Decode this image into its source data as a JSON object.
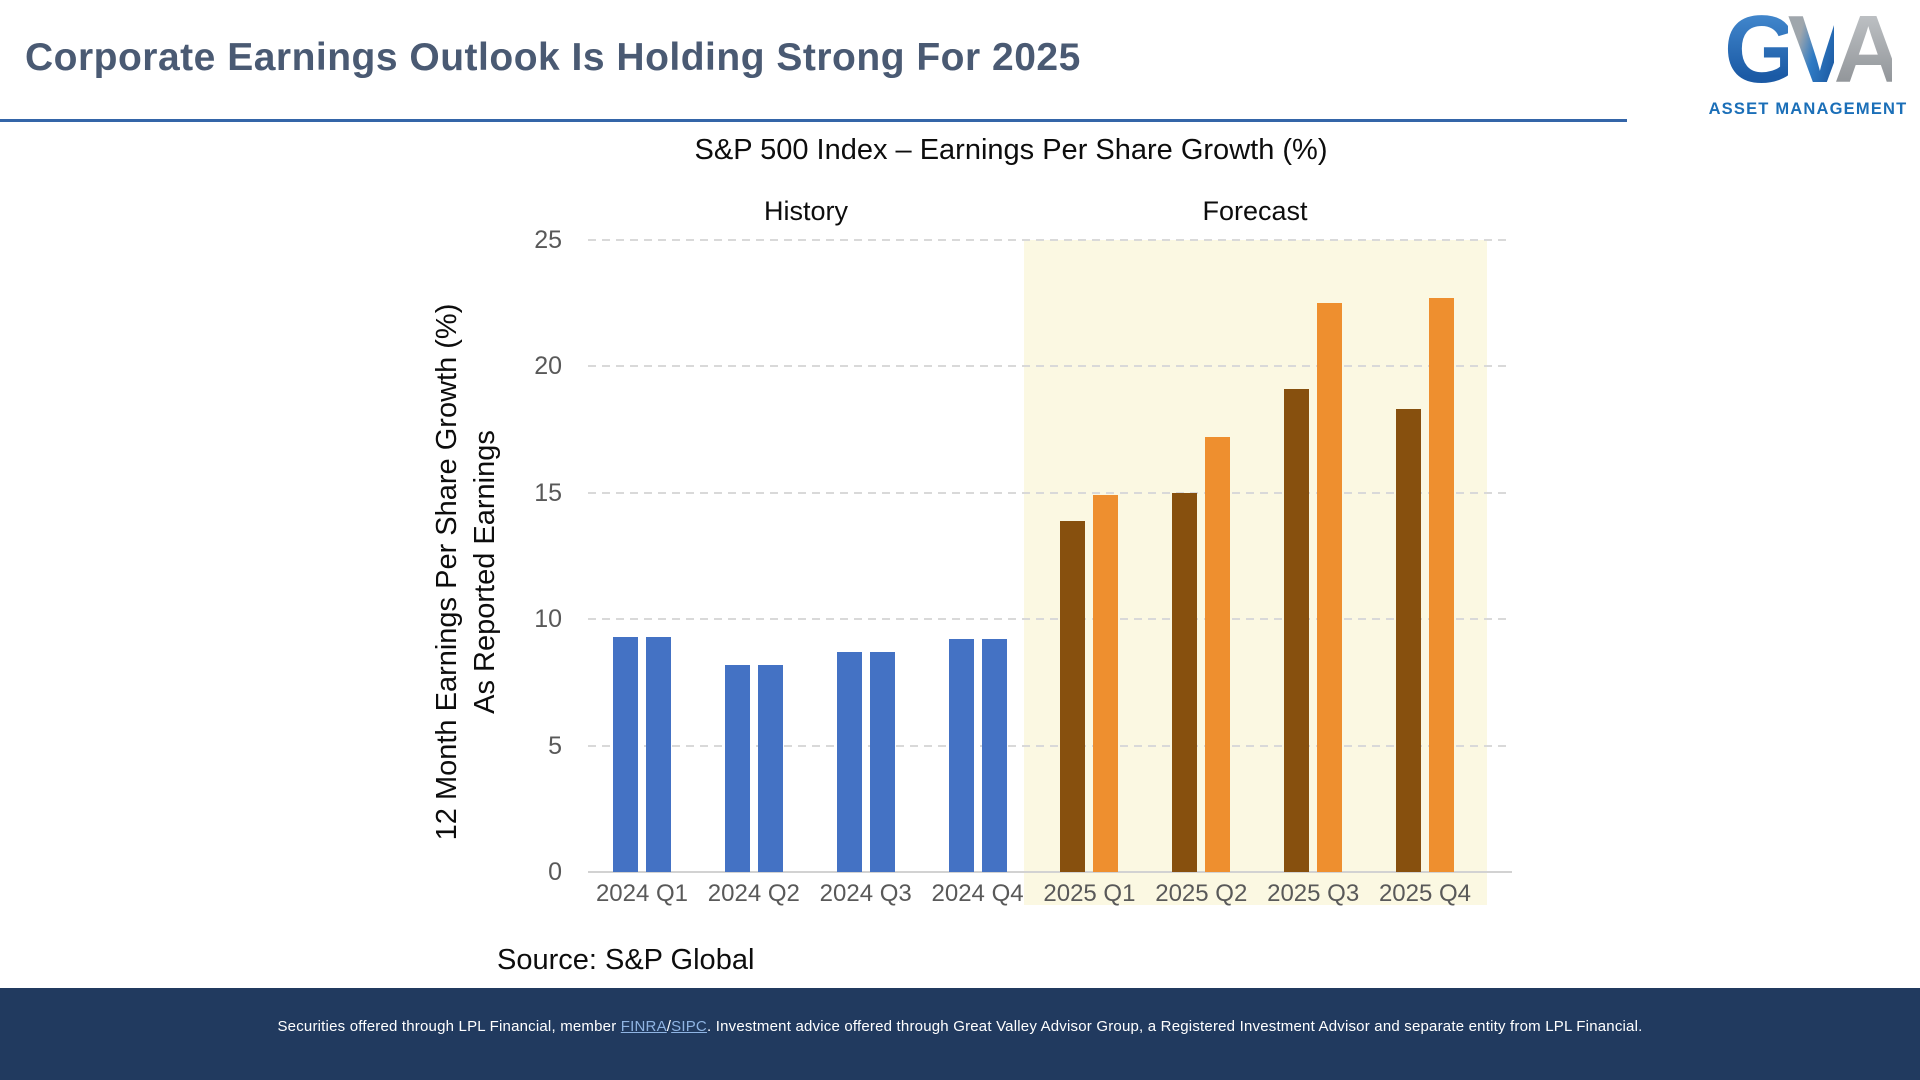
{
  "header": {
    "title": "Corporate Earnings Outlook Is Holding Strong For 2025",
    "logo": {
      "g": "G",
      "v": "V",
      "a": "A",
      "tm": "™",
      "subtitle": "ASSET MANAGEMENT"
    }
  },
  "chart_data": {
    "type": "bar",
    "title": "S&P 500 Index – Earnings Per Share Growth (%)",
    "ylabel_line1": "12 Month Earnings Per Share Growth (%)",
    "ylabel_line2": "As Reported Earnings",
    "xlabel": "",
    "ylim": [
      0,
      25
    ],
    "yticks": [
      0,
      5,
      10,
      15,
      20,
      25
    ],
    "grid": "horizontal-dashed",
    "legend": "none",
    "region_labels": [
      {
        "label": "History",
        "span": [
          "2024 Q1",
          "2024 Q4"
        ]
      },
      {
        "label": "Forecast",
        "span": [
          "2025 Q1",
          "2025 Q4"
        ]
      }
    ],
    "categories": [
      "2024 Q1",
      "2024 Q2",
      "2024 Q3",
      "2024 Q4",
      "2025 Q1",
      "2025 Q2",
      "2025 Q3",
      "2025 Q4"
    ],
    "phases": [
      "history",
      "history",
      "history",
      "history",
      "forecast",
      "forecast",
      "forecast",
      "forecast"
    ],
    "series": [
      {
        "name": "bar-left",
        "values": [
          9.3,
          8.2,
          8.7,
          9.2,
          13.9,
          15.0,
          19.1,
          18.3
        ]
      },
      {
        "name": "bar-right",
        "values": [
          9.3,
          8.2,
          8.7,
          9.2,
          14.9,
          17.2,
          22.5,
          22.7
        ]
      }
    ],
    "source": "Source: S&P Global"
  },
  "footer": {
    "before": "Securities offered through LPL Financial, member ",
    "finra": "FINRA",
    "slash": "/",
    "sipc": "SIPC",
    "after": ". Investment advice offered through Great Valley Advisor Group, a Registered Investment Advisor and separate entity from LPL Financial."
  },
  "colors": {
    "title": "#4A5A73",
    "rule": "#3465A8",
    "history_bar": "#4472C4",
    "forecast_bar_dark": "#87500E",
    "forecast_bar_light": "#EE8F2F",
    "forecast_band": "#FBF8E2",
    "gridline": "#D9D9D9",
    "axis_line": "#D2D2D2",
    "tick_text": "#595959",
    "footer_bg": "#213A5F",
    "footer_link": "#8FB4E3",
    "logo_blue": "#1B6FB8"
  }
}
